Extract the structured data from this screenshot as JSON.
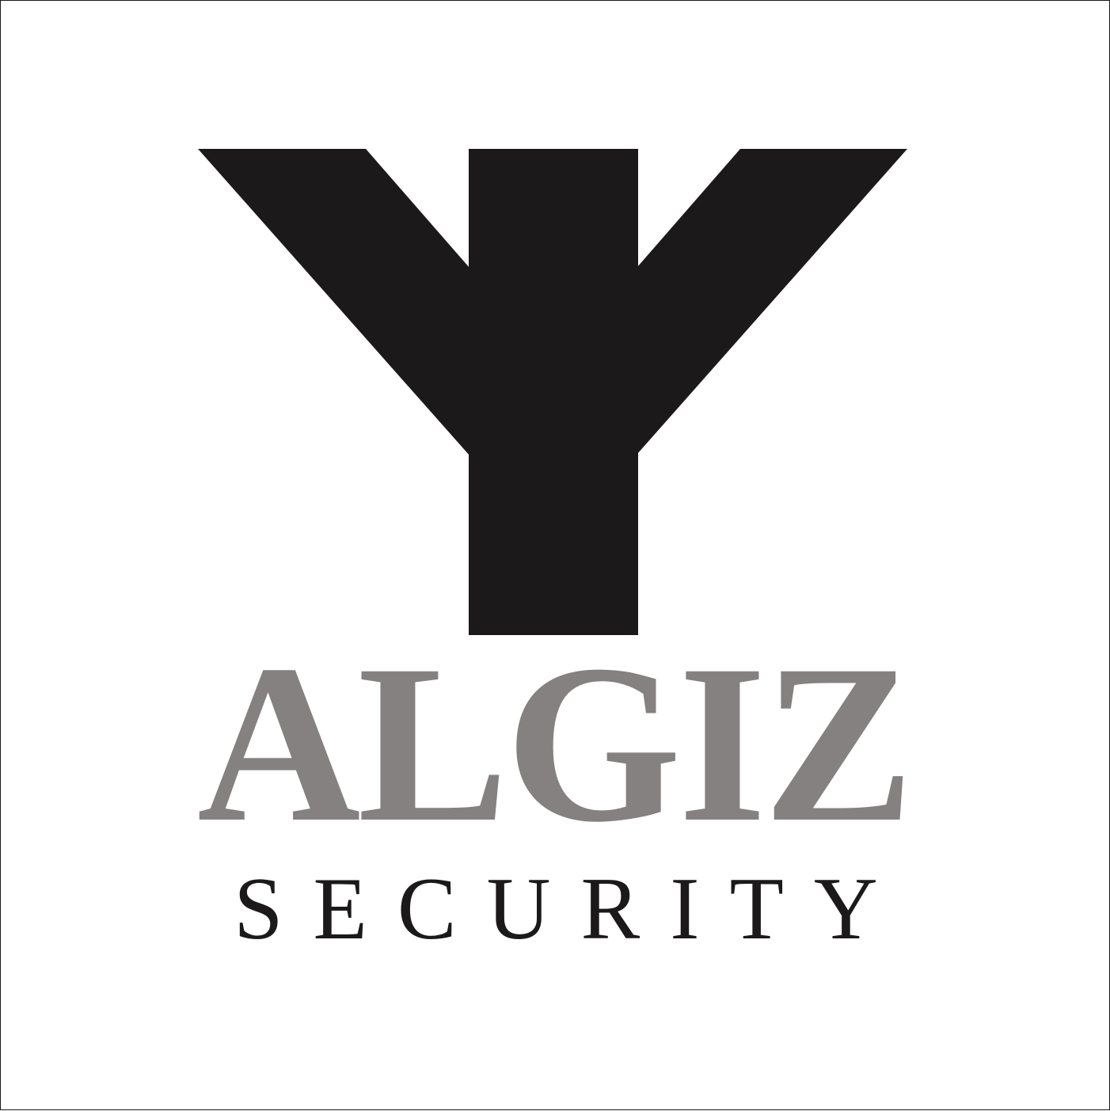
{
  "brand": {
    "name": "ALGIZ",
    "tagline": "SECURITY",
    "mark_icon": "algiz-rune-y-icon"
  },
  "colors": {
    "background": "#ffffff",
    "mark": "#1b191a",
    "name": "#858181",
    "tagline": "#1b191a",
    "border": "#1a1a1a"
  }
}
